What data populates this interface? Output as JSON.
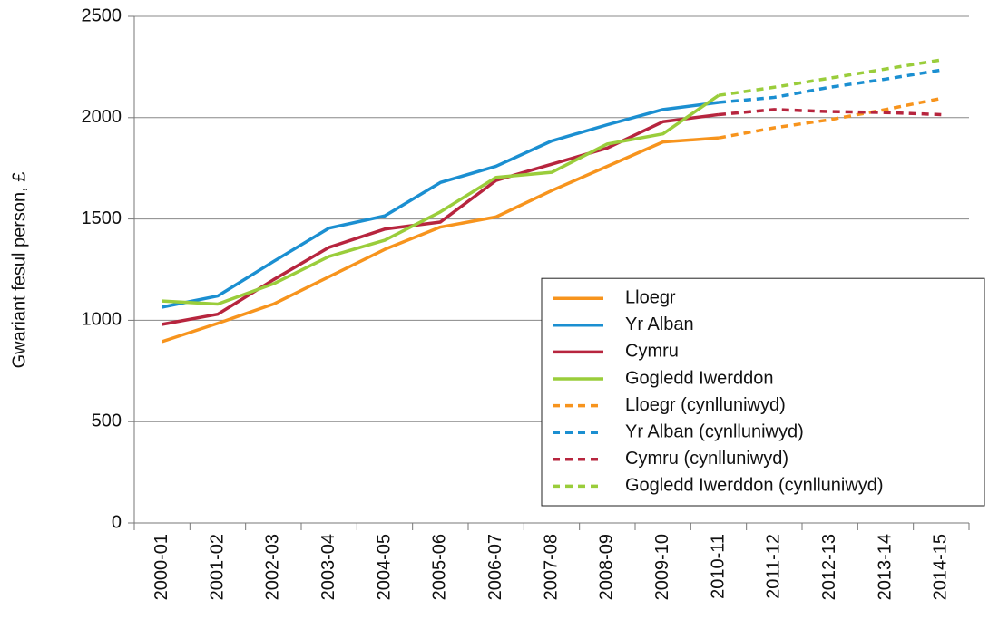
{
  "chart_data": {
    "type": "line",
    "y_label": "Gwariant fesul person, £",
    "categories": [
      "2000-01",
      "2001-02",
      "2002-03",
      "2003-04",
      "2004-05",
      "2005-06",
      "2006-07",
      "2007-08",
      "2008-09",
      "2009-10",
      "2010-11",
      "2011-12",
      "2012-13",
      "2013-14",
      "2014-15"
    ],
    "series": [
      {
        "name": "Lloegr",
        "color": "#f7941d",
        "dashed": false,
        "values": [
          895,
          985,
          1080,
          1215,
          1350,
          1460,
          1510,
          1640,
          1760,
          1880,
          1900,
          null,
          null,
          null,
          null
        ]
      },
      {
        "name": "Yr Alban",
        "color": "#1b8fd1",
        "dashed": false,
        "values": [
          1065,
          1120,
          1290,
          1455,
          1515,
          1680,
          1760,
          1885,
          1965,
          2040,
          2075,
          null,
          null,
          null,
          null
        ]
      },
      {
        "name": "Cymru",
        "color": "#b7253e",
        "dashed": false,
        "values": [
          980,
          1030,
          1200,
          1360,
          1450,
          1485,
          1690,
          1770,
          1850,
          1980,
          2015,
          null,
          null,
          null,
          null
        ]
      },
      {
        "name": "Gogledd Iwerddon",
        "color": "#9acd3b",
        "dashed": false,
        "values": [
          1095,
          1080,
          1180,
          1315,
          1395,
          1535,
          1705,
          1730,
          1870,
          1920,
          2110,
          null,
          null,
          null,
          null
        ]
      },
      {
        "name": "Lloegr (cynlluniwyd)",
        "color": "#f7941d",
        "dashed": true,
        "values": [
          null,
          null,
          null,
          null,
          null,
          null,
          null,
          null,
          null,
          null,
          1900,
          1950,
          1990,
          2040,
          2095
        ]
      },
      {
        "name": "Yr Alban (cynlluniwyd)",
        "color": "#1b8fd1",
        "dashed": true,
        "values": [
          null,
          null,
          null,
          null,
          null,
          null,
          null,
          null,
          null,
          null,
          2075,
          2100,
          2150,
          2190,
          2235
        ]
      },
      {
        "name": "Cymru (cynlluniwyd)",
        "color": "#b7253e",
        "dashed": true,
        "values": [
          null,
          null,
          null,
          null,
          null,
          null,
          null,
          null,
          null,
          null,
          2015,
          2040,
          2030,
          2025,
          2015
        ]
      },
      {
        "name": "Gogledd Iwerddon (cynlluniwyd)",
        "color": "#9acd3b",
        "dashed": true,
        "values": [
          null,
          null,
          null,
          null,
          null,
          null,
          null,
          null,
          null,
          null,
          2110,
          2150,
          2195,
          2240,
          2285
        ]
      }
    ],
    "ylim": [
      0,
      2500
    ],
    "yticks": [
      0,
      500,
      1000,
      1500,
      2000,
      2500
    ],
    "grid": true,
    "legend": "lower right"
  }
}
